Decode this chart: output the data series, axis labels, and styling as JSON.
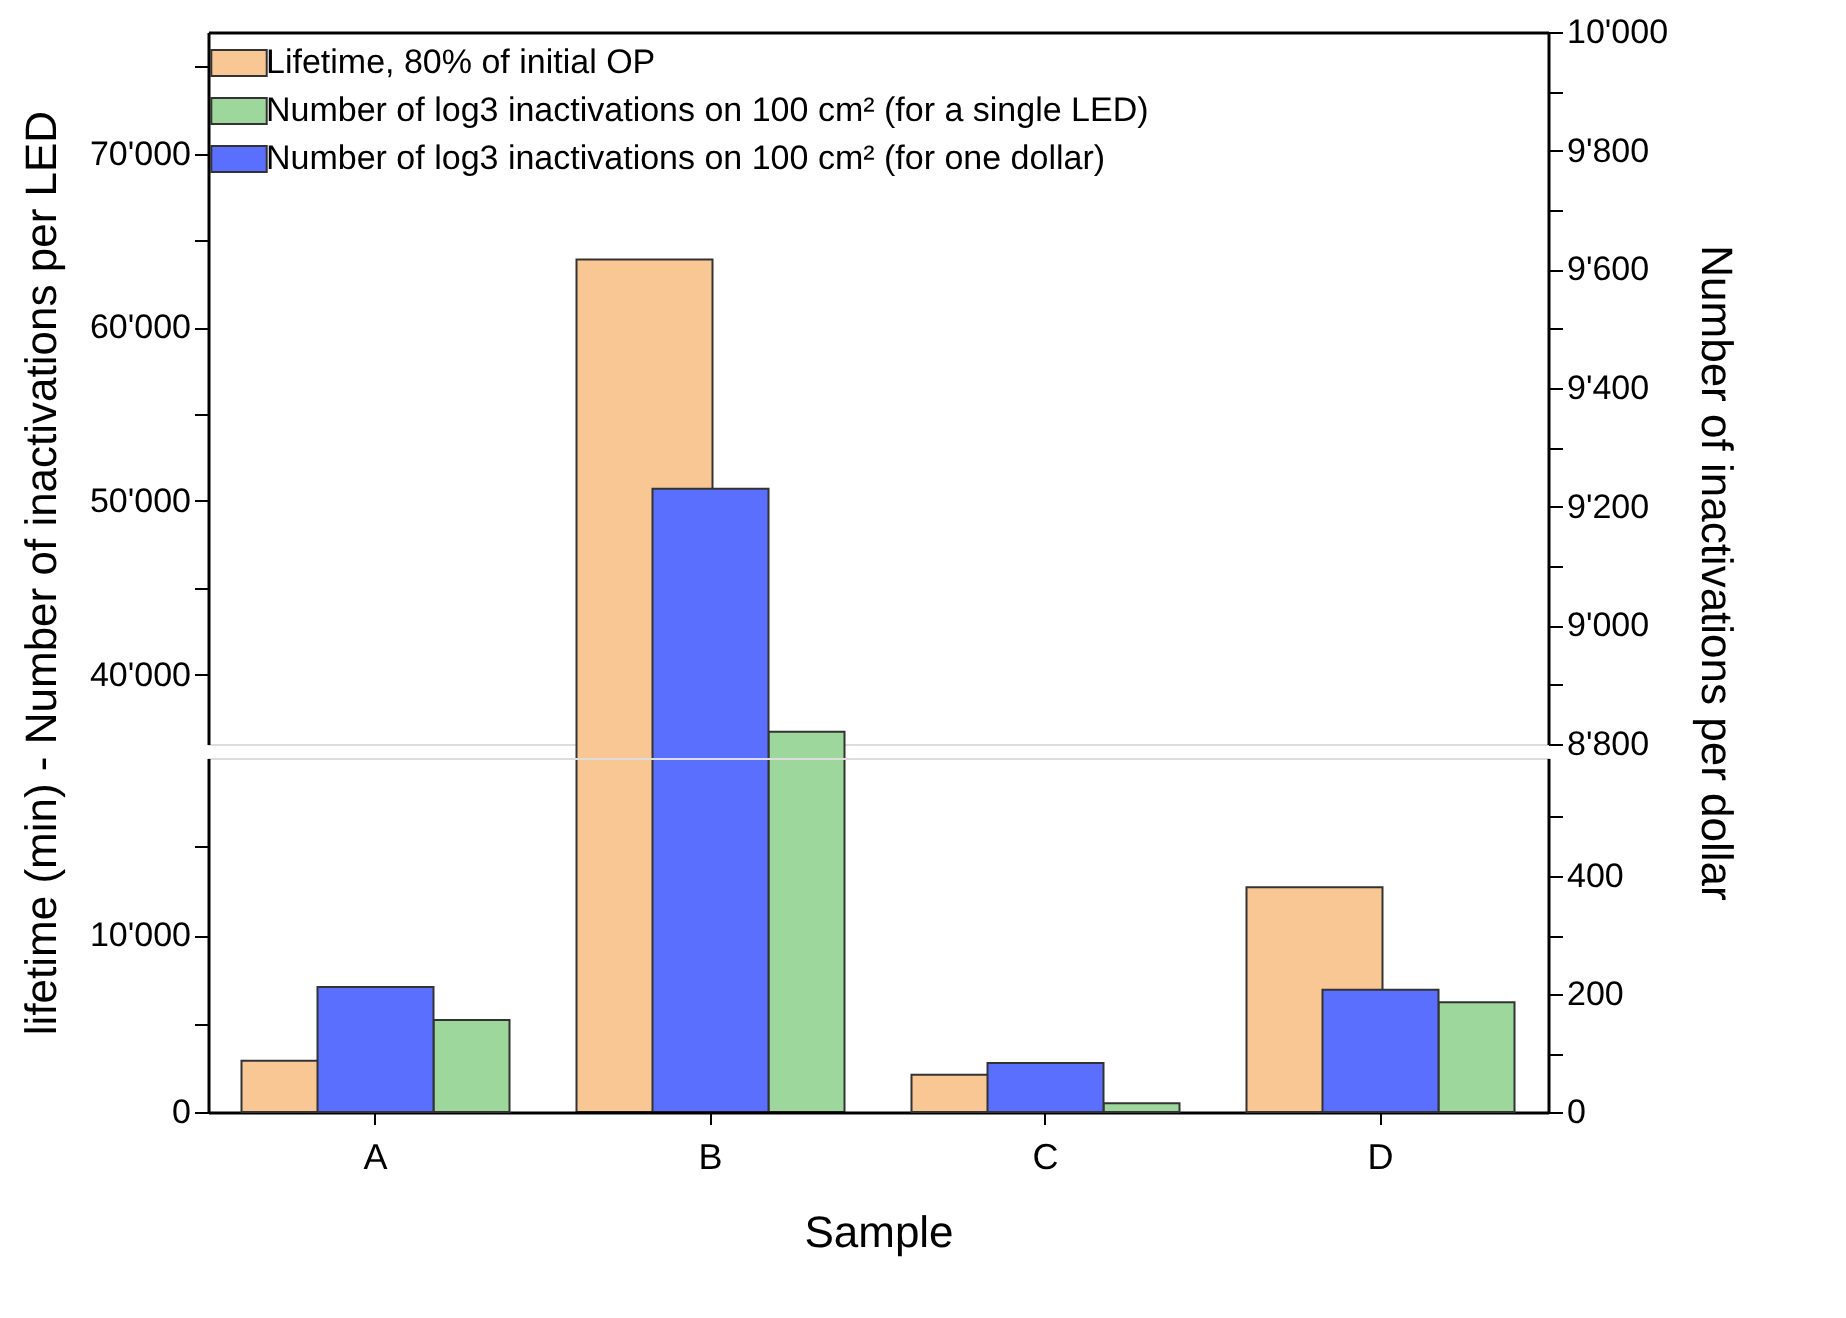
{
  "chart_data": [
    {
      "type": "bar",
      "categories": [
        null,
        null,
        null,
        null
      ],
      "tick_labels": "y",
      "legend": "top left",
      "ylabel": "lifetime (min) - Number of inactivations per LED",
      "y2label": "Number of inactivations per dollar",
      "ylim": [
        36000,
        77000
      ],
      "yticks": [
        {
          "value": 40000,
          "label": "40'000"
        },
        {
          "value": 45000,
          "label": null
        },
        {
          "value": 50000,
          "label": "50'000"
        },
        {
          "value": 55000,
          "label": null
        },
        {
          "value": 60000,
          "label": "60'000"
        },
        {
          "value": 65000,
          "label": null
        },
        {
          "value": 70000,
          "label": "70'000"
        },
        {
          "value": 75000,
          "label": null
        }
      ],
      "y2lim": [
        8800,
        10000
      ],
      "y2ticks": [
        {
          "value": 8800,
          "label": "8'800"
        },
        {
          "value": 8900,
          "label": null
        },
        {
          "value": 9000,
          "label": "9'000"
        },
        {
          "value": 9100,
          "label": null
        },
        {
          "value": 9200,
          "label": "9'200"
        },
        {
          "value": 9300,
          "label": null
        },
        {
          "value": 9400,
          "label": "9'400"
        },
        {
          "value": 9500,
          "label": null
        },
        {
          "value": 9600,
          "label": "9'600"
        },
        {
          "value": 9700,
          "label": null
        },
        {
          "value": 9800,
          "label": "9'800"
        },
        {
          "value": 9900,
          "label": null
        },
        {
          "value": 10000,
          "label": "10'000"
        }
      ],
      "series": [
        {
          "name": "Lifetime, 80% of initial OP",
          "color": "#f9c794",
          "values": [
            null,
            63900,
            null,
            null
          ]
        },
        {
          "name": "Number of log3 inactivations on 100 cm² (for a single LED)",
          "color": "#9dd79b",
          "values": [
            null,
            36700,
            null,
            null
          ]
        },
        {
          "name": "Number of log3 inactivations on 100 cm² (for one dollar)",
          "color": "#5b6ffe",
          "axis": "y2",
          "values": [
            null,
            9230,
            null,
            null
          ]
        }
      ]
    },
    {
      "type": "bar",
      "categories": [
        "A",
        "B",
        "C",
        "D"
      ],
      "xlabel": "Sample",
      "ylim": [
        0,
        20000
      ],
      "yticks": [
        0,
        {
          "value": 5000,
          "label": null
        },
        {
          "value": 10000,
          "label": "10'000"
        },
        {
          "value": 15000,
          "label": null
        }
      ],
      "y2lim": [
        0,
        600
      ],
      "y2ticks": [
        0,
        {
          "value": 100,
          "label": null
        },
        200,
        {
          "value": 300,
          "label": null
        },
        400,
        {
          "value": 500,
          "label": null
        }
      ],
      "series": [
        {
          "color": "#f9c794",
          "values": [
            2900,
            null,
            2100,
            12700
          ]
        },
        {
          "color": "#9dd79b",
          "values": [
            5200,
            null,
            500,
            6200
          ]
        },
        {
          "color": "#5b6ffe",
          "axis": "y2",
          "values": [
            212,
            null,
            83,
            207
          ]
        }
      ]
    }
  ]
}
